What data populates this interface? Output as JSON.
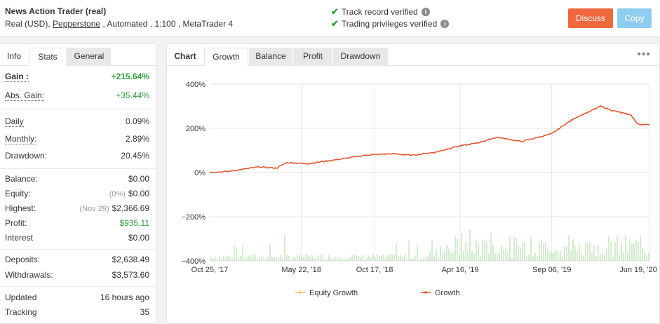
{
  "header": {
    "title": "News Action Trader (real)",
    "sub_prefix": "Real (USD), ",
    "broker": "Pepperstone",
    "sub_suffix": " , Automated , 1:100 , MetaTrader 4",
    "verify_track": "Track record verified",
    "verify_priv": "Trading privileges verified",
    "discuss": "Discuss",
    "copy": "Copy"
  },
  "stats_tabs": [
    "Info",
    "Stats",
    "General"
  ],
  "stats": {
    "gain_label": "Gain :",
    "gain": "+215.64%",
    "abs_label": "Abs. Gain:",
    "abs": "+35.44%",
    "daily_label": "Daily",
    "daily": "0.09%",
    "monthly_label": "Monthly:",
    "monthly": "2.89%",
    "drawdown_label": "Drawdown:",
    "drawdown": "20.45%",
    "balance_label": "Balance:",
    "balance": "$0.00",
    "equity_label": "Equity:",
    "equity_note": "(0%)",
    "equity": "$0.00",
    "highest_label": "Highest:",
    "highest_note": "(Nov 29)",
    "highest": "$2,366.69",
    "profit_label": "Profit:",
    "profit": "$935.11",
    "interest_label": "Interest",
    "interest": "$0.00",
    "deposits_label": "Deposits:",
    "deposits": "$2,638.49",
    "withdrawals_label": "Withdrawals:",
    "withdrawals": "$3,573.60",
    "updated_label": "Updated",
    "updated": "16 hours ago",
    "tracking_label": "Tracking",
    "tracking": "35"
  },
  "chart_tabs": [
    "Chart",
    "Growth",
    "Balance",
    "Profit",
    "Drawdown"
  ],
  "colors": {
    "growth": "#e2502a",
    "equity": "#f2c14e",
    "bars": "#a8d8a0"
  },
  "chart_data": {
    "type": "line",
    "title": "",
    "ylim": [
      -400,
      400
    ],
    "yticks": [
      "400%",
      "200%",
      "0%",
      "−200%",
      "−400%"
    ],
    "xticks": [
      "Oct 25, '17",
      "May 22, '18",
      "Oct 17, '18",
      "Apr 16, '19",
      "Sep 06, '19",
      "Jun 19, '20"
    ],
    "legend": [
      "Equity Growth",
      "Growth"
    ],
    "grid": true,
    "series": [
      {
        "name": "Growth",
        "x": [
          0,
          30,
          80,
          110,
          125,
          160,
          200,
          260,
          300,
          330,
          370,
          400,
          440,
          470,
          510,
          560,
          580,
          600,
          625,
          640,
          660,
          690,
          700,
          720
        ],
        "y": [
          0,
          5,
          25,
          20,
          45,
          40,
          55,
          80,
          85,
          78,
          92,
          115,
          135,
          160,
          140,
          175,
          215,
          250,
          280,
          300,
          280,
          260,
          220,
          215
        ]
      }
    ]
  }
}
